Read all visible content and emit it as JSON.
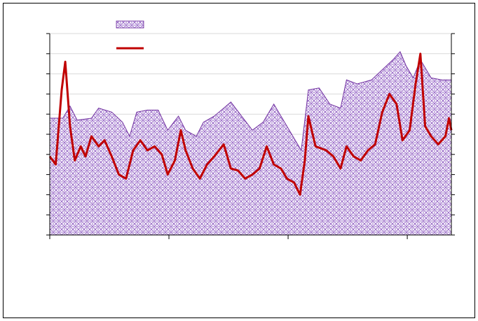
{
  "chart_data": {
    "type": "line",
    "xlim": [
      0,
      337
    ],
    "xticks": [
      0,
      100,
      200,
      300
    ],
    "ylim": [
      0,
      10
    ],
    "yticks": [
      0,
      1,
      2,
      3,
      4,
      5,
      6,
      7,
      8,
      9,
      10
    ],
    "grid": true,
    "series": [
      {
        "type": "area",
        "color": "#7030a0",
        "x": [
          0,
          11,
          17,
          23,
          35,
          41,
          52,
          61,
          67,
          73,
          82,
          91,
          99,
          108,
          114,
          123,
          129,
          138,
          146,
          152,
          161,
          170,
          179,
          188,
          194,
          202,
          211,
          217,
          226,
          235,
          244,
          249,
          258,
          270,
          279,
          288,
          294,
          299,
          305,
          311,
          320,
          329,
          337
        ],
        "values": [
          5.8,
          5.8,
          6.4,
          5.7,
          5.8,
          6.3,
          6.1,
          5.6,
          4.9,
          6.1,
          6.2,
          6.2,
          5.2,
          5.9,
          5.2,
          4.9,
          5.6,
          5.9,
          6.3,
          6.6,
          5.9,
          5.2,
          5.6,
          6.5,
          5.9,
          5.1,
          4.2,
          7.2,
          7.3,
          6.5,
          6.3,
          7.7,
          7.5,
          7.7,
          8.2,
          8.7,
          9.1,
          8.4,
          7.8,
          8.7,
          7.8,
          7.7,
          7.7
        ]
      },
      {
        "type": "line",
        "color": "#c00000",
        "x": [
          0,
          5,
          10,
          13,
          17,
          21,
          26,
          30,
          35,
          41,
          46,
          52,
          58,
          64,
          70,
          76,
          82,
          88,
          94,
          99,
          105,
          110,
          114,
          120,
          126,
          132,
          138,
          146,
          152,
          158,
          164,
          170,
          176,
          182,
          188,
          194,
          199,
          205,
          210,
          214,
          217,
          223,
          232,
          238,
          244,
          249,
          255,
          261,
          267,
          273,
          279,
          285,
          291,
          296,
          302,
          307,
          311,
          315,
          320,
          326,
          332,
          335,
          337
        ],
        "values": [
          3.9,
          3.5,
          7.2,
          8.6,
          5.4,
          3.7,
          4.4,
          3.9,
          4.9,
          4.4,
          4.7,
          3.9,
          3.0,
          2.8,
          4.2,
          4.7,
          4.2,
          4.4,
          4.0,
          3.0,
          3.7,
          5.2,
          4.2,
          3.3,
          2.8,
          3.5,
          3.9,
          4.5,
          3.3,
          3.2,
          2.8,
          3.0,
          3.3,
          4.4,
          3.5,
          3.3,
          2.8,
          2.6,
          2.0,
          3.7,
          5.9,
          4.4,
          4.2,
          3.9,
          3.3,
          4.4,
          3.9,
          3.7,
          4.2,
          4.5,
          6.1,
          7.0,
          6.5,
          4.7,
          5.2,
          7.5,
          9.0,
          5.4,
          4.9,
          4.5,
          4.9,
          5.8,
          5.2
        ]
      }
    ]
  }
}
